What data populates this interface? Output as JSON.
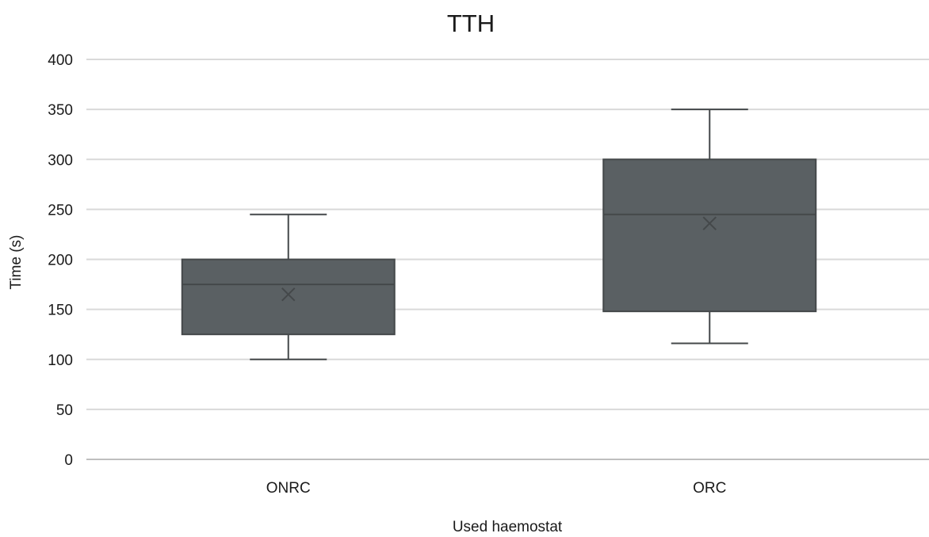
{
  "chart_data": {
    "type": "box",
    "title": "TTH",
    "xlabel": "Used haemostat",
    "ylabel": "Time (s)",
    "ylim": [
      0,
      400
    ],
    "yticks": [
      0,
      50,
      100,
      150,
      200,
      250,
      300,
      350,
      400
    ],
    "grid": true,
    "categories": [
      "ONRC",
      "ORC"
    ],
    "boxes": [
      {
        "category": "ONRC",
        "min": 100,
        "q1": 125,
        "median": 175,
        "q3": 200,
        "max": 245,
        "mean": 165
      },
      {
        "category": "ORC",
        "min": 116,
        "q1": 148,
        "median": 245,
        "q3": 300,
        "max": 350,
        "mean": 236
      }
    ],
    "colors": {
      "box_fill": "#5a6063",
      "box_stroke": "#44484a",
      "whisker": "#44484a",
      "grid": "#d9d9d9",
      "axis": "#bfbfbf"
    }
  }
}
